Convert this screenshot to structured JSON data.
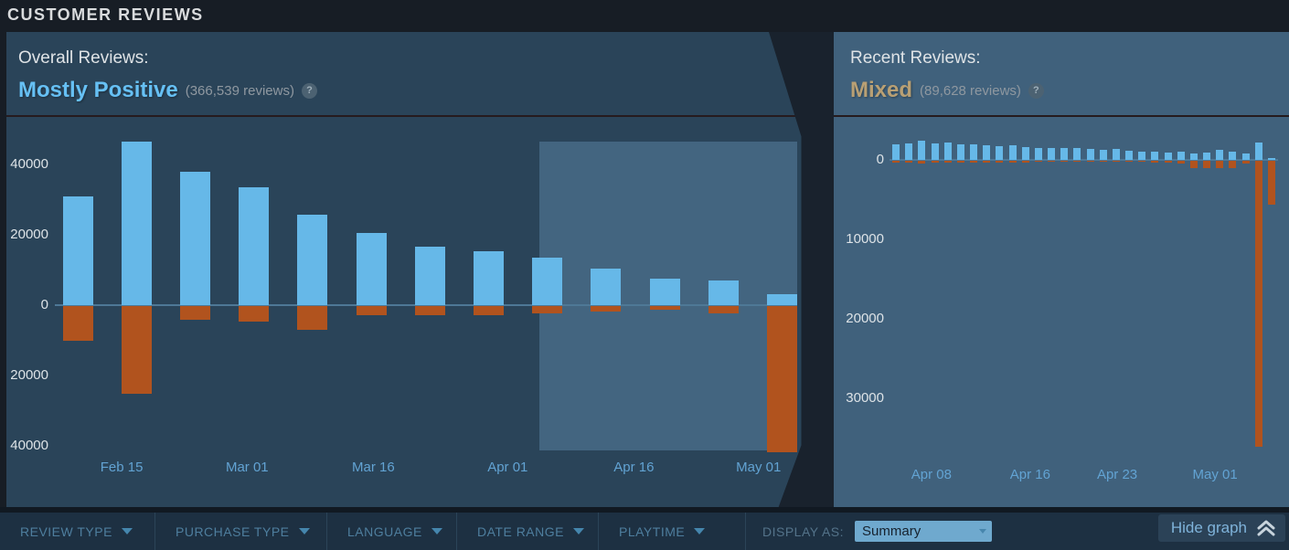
{
  "page_title": "CUSTOMER REVIEWS",
  "overall_panel": {
    "label": "Overall Reviews:",
    "rating": "Mostly Positive",
    "count_text": "(366,539 reviews)",
    "help_icon": "?"
  },
  "recent_panel": {
    "label": "Recent Reviews:",
    "rating": "Mixed",
    "count_text": "(89,628 reviews)",
    "help_icon": "?"
  },
  "filter_bar": {
    "items": [
      {
        "label": "REVIEW TYPE"
      },
      {
        "label": "PURCHASE TYPE"
      },
      {
        "label": "LANGUAGE"
      },
      {
        "label": "DATE RANGE"
      },
      {
        "label": "PLAYTIME"
      }
    ],
    "display_as_label": "DISPLAY AS:",
    "display_as_value": "Summary",
    "hide_graph_label": "Hide graph"
  },
  "colors": {
    "positive_bar": "#66b8e8",
    "negative_bar": "#b1531e",
    "overall_rating": "#66c0f4",
    "recent_rating": "#b9a074",
    "highlight_region": "#436580",
    "zero_line": "#4e7896",
    "left_panel_bg": "#2a4459",
    "right_panel_bg": "#40617c"
  },
  "chart_data": [
    {
      "id": "overall",
      "type": "bar",
      "title": "Overall reviews over time (weekly positive vs negative)",
      "granularity": "weekly",
      "series": [
        {
          "name": "positive",
          "values": [
            31000,
            46500,
            38000,
            33500,
            25800,
            20500,
            16600,
            15300,
            13500,
            10400,
            7500,
            7000,
            3000
          ]
        },
        {
          "name": "negative",
          "values": [
            -9800,
            -25000,
            -4000,
            -4500,
            -6800,
            -2600,
            -2700,
            -2500,
            -2000,
            -1500,
            -1000,
            -2000,
            -41500
          ]
        }
      ],
      "yticks": [
        {
          "label": "40000",
          "value": 40000
        },
        {
          "label": "20000",
          "value": 20000
        },
        {
          "label": "0",
          "value": 0
        },
        {
          "label": "20000",
          "value": -20000
        },
        {
          "label": "40000",
          "value": -40000
        }
      ],
      "xticks": [
        {
          "label": "Feb 15",
          "pos": 0.09
        },
        {
          "label": "Mar 01",
          "pos": 0.259
        },
        {
          "label": "Mar 16",
          "pos": 0.429
        },
        {
          "label": "Apr 01",
          "pos": 0.61
        },
        {
          "label": "Apr 16",
          "pos": 0.78
        },
        {
          "label": "May 01",
          "pos": 0.948
        }
      ],
      "ylim": [
        -41500,
        46500
      ],
      "grid": false,
      "legend": "none",
      "highlight_region": {
        "from_pos": 0.653,
        "to_pos": 1.0
      }
    },
    {
      "id": "recent",
      "type": "bar",
      "title": "Recent reviews over time (daily positive vs negative)",
      "granularity": "daily",
      "series": [
        {
          "name": "positive",
          "values": [
            1950,
            2100,
            2400,
            2100,
            2200,
            1950,
            1950,
            1850,
            1700,
            1850,
            1600,
            1500,
            1500,
            1450,
            1500,
            1380,
            1270,
            1380,
            1150,
            1030,
            1030,
            920,
            1030,
            800,
            920,
            1270,
            1030,
            800,
            2200,
            250
          ]
        },
        {
          "name": "negative",
          "values": [
            -250,
            -250,
            -300,
            -250,
            -250,
            -250,
            -200,
            -200,
            -200,
            -200,
            -200,
            -150,
            -150,
            -150,
            -150,
            -150,
            -150,
            -150,
            -150,
            -150,
            -200,
            -200,
            -300,
            -900,
            -900,
            -900,
            -900,
            -300,
            -36000,
            -5500
          ]
        }
      ],
      "yticks": [
        {
          "label": "0",
          "value": 0
        },
        {
          "label": "10000",
          "value": -10000
        },
        {
          "label": "20000",
          "value": -20000
        },
        {
          "label": "30000",
          "value": -30000
        }
      ],
      "xticks": [
        {
          "label": "Apr 08",
          "pos": 0.108
        },
        {
          "label": "Apr 16",
          "pos": 0.362
        },
        {
          "label": "Apr 23",
          "pos": 0.586
        },
        {
          "label": "May 01",
          "pos": 0.838
        }
      ],
      "ylim": [
        -37500,
        2900
      ],
      "grid": false,
      "legend": "none"
    }
  ]
}
